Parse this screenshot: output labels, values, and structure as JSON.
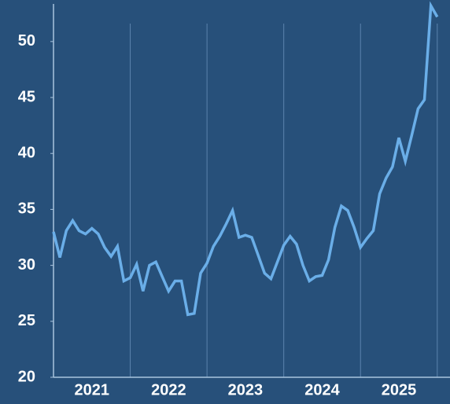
{
  "chart_data": {
    "type": "line",
    "categories": [
      null,
      null,
      null,
      null,
      null,
      null,
      "2021",
      null,
      null,
      null,
      null,
      null,
      null,
      null,
      null,
      null,
      null,
      null,
      "2022",
      null,
      null,
      null,
      null,
      null,
      null,
      null,
      null,
      null,
      null,
      null,
      "2023",
      null,
      null,
      null,
      null,
      null,
      null,
      null,
      null,
      null,
      null,
      null,
      "2024",
      null,
      null,
      null,
      null,
      null,
      null,
      null,
      null,
      null,
      null,
      null,
      "2025",
      null,
      null,
      null,
      null,
      null,
      null
    ],
    "series": [
      {
        "color": "#6aaee8",
        "values": [
          33.0,
          30.7,
          33.1,
          34.0,
          33.1,
          32.8,
          33.3,
          32.8,
          31.6,
          30.8,
          31.7,
          28.6,
          28.9,
          30.1,
          27.7,
          30.0,
          30.3,
          29.0,
          27.7,
          28.6,
          28.6,
          25.6,
          25.7,
          29.3,
          30.2,
          31.7,
          32.6,
          33.7,
          34.9,
          32.5,
          32.7,
          32.5,
          30.9,
          29.3,
          28.8,
          30.3,
          31.8,
          32.6,
          31.9,
          30.0,
          28.6,
          29.0,
          29.1,
          30.5,
          33.4,
          35.3,
          34.9,
          33.4,
          31.6,
          32.4,
          33.1,
          36.4,
          37.8,
          38.8,
          41.4,
          39.3,
          41.6,
          44.0,
          44.8,
          53.2,
          52.2
        ]
      }
    ],
    "ylim": [
      20,
      53.5
    ],
    "yticks": [
      20,
      25,
      30,
      35,
      40,
      45,
      50
    ],
    "grid": true
  }
}
